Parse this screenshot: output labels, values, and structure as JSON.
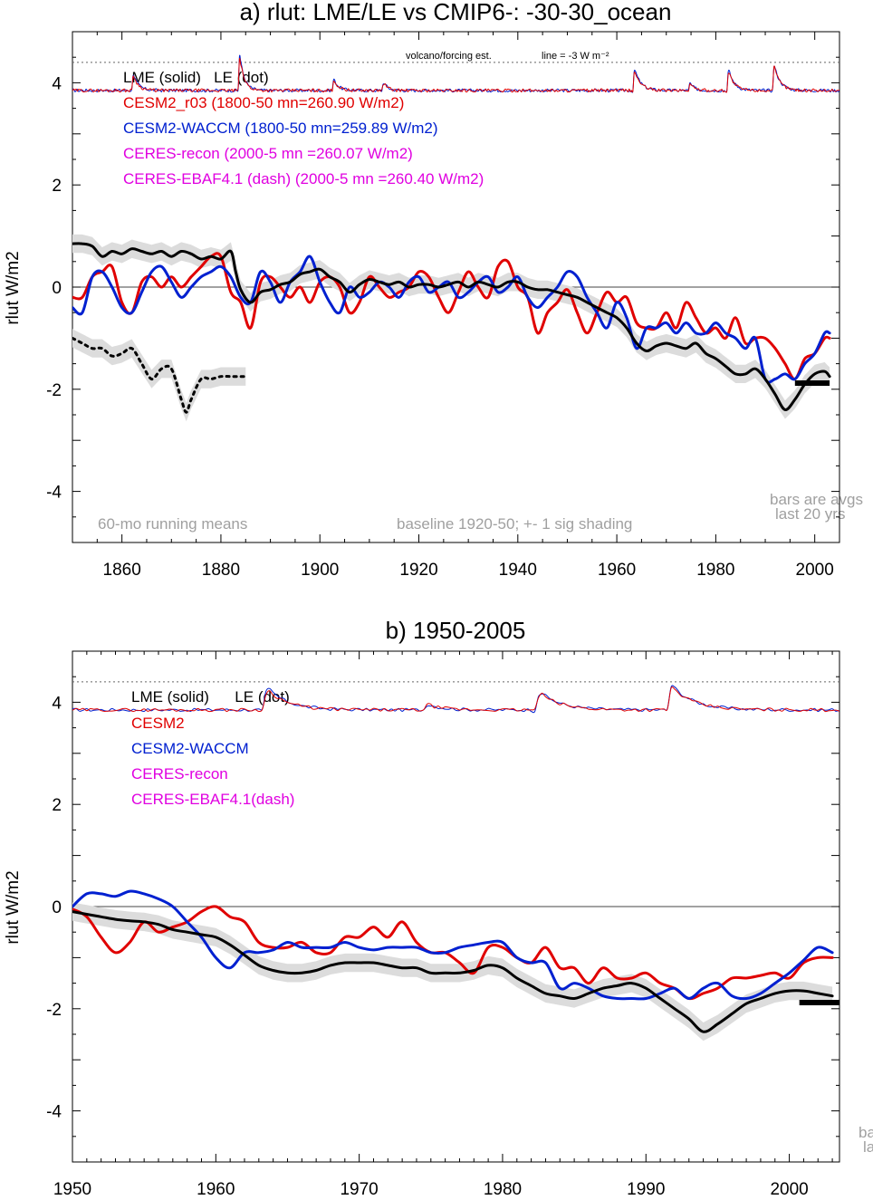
{
  "chart_data": [
    {
      "type": "line",
      "title": "a) rlut: LME/LE vs CMIP6-: -30-30_ocean",
      "ylabel": "rlut W/m2",
      "xlim": [
        1850,
        2005
      ],
      "ylim": [
        -5,
        5
      ],
      "xticks": [
        1860,
        1880,
        1900,
        1920,
        1940,
        1960,
        1980,
        2000
      ],
      "yticks": [
        4,
        2,
        0,
        -2,
        -4
      ],
      "volcano_note": "volcano/forcing est.",
      "line_note": "line = -3 W m⁻²",
      "legend": [
        {
          "label": "LME (solid)   LE (dot)",
          "color": "#000000"
        },
        {
          "label": "CESM2_r03 (1800-50 mn=260.90 W/m2)",
          "color": "#e00000"
        },
        {
          "label": "CESM2-WACCM (1800-50 mn=259.89 W/m2)",
          "color": "#0020d0"
        },
        {
          "label": "CERES-recon (2000-5 mn =260.07 W/m2)",
          "color": "#e000e0"
        },
        {
          "label": "CERES-EBAF4.1 (dash) (2000-5 mn =260.40 W/m2)",
          "color": "#e000e0"
        }
      ],
      "notes": {
        "bottom_left": "60-mo running means",
        "bottom_mid": "baseline 1920-50; +- 1 sig shading",
        "right_1": "bars are avgs",
        "right_2": "last 20 yrs"
      },
      "series": [
        {
          "name": "LME",
          "color": "#000000",
          "style": "solid",
          "x": [
            1850,
            1852,
            1854,
            1856,
            1858,
            1860,
            1862,
            1864,
            1866,
            1868,
            1870,
            1872,
            1874,
            1876,
            1878,
            1880,
            1882,
            1883,
            1884,
            1886,
            1888,
            1890,
            1892,
            1894,
            1896,
            1898,
            1900,
            1902,
            1904,
            1906,
            1908,
            1910,
            1912,
            1914,
            1916,
            1918,
            1920,
            1922,
            1924,
            1926,
            1928,
            1930,
            1932,
            1934,
            1936,
            1938,
            1940,
            1942,
            1944,
            1946,
            1948,
            1950,
            1952,
            1954,
            1956,
            1958,
            1960,
            1962,
            1964,
            1966,
            1968,
            1970,
            1972,
            1974,
            1976,
            1978,
            1980,
            1982,
            1984,
            1986,
            1988,
            1990,
            1992,
            1994,
            1996,
            1998,
            2000,
            2002,
            2003
          ],
          "y": [
            0.85,
            0.85,
            0.8,
            0.6,
            0.7,
            0.65,
            0.75,
            0.7,
            0.65,
            0.7,
            0.6,
            0.7,
            0.65,
            0.55,
            0.6,
            0.55,
            0.7,
            0.3,
            -0.05,
            -0.3,
            -0.1,
            -0.05,
            0.05,
            0.1,
            0.25,
            0.3,
            0.35,
            0.2,
            0.1,
            -0.1,
            0.05,
            0.15,
            0.1,
            0.05,
            0.1,
            0.0,
            0.05,
            0.05,
            0.0,
            0.05,
            0.1,
            0.0,
            0.1,
            0.05,
            0.0,
            0.1,
            0.1,
            0.0,
            -0.05,
            -0.05,
            -0.1,
            -0.15,
            -0.2,
            -0.3,
            -0.4,
            -0.5,
            -0.6,
            -0.8,
            -1.1,
            -1.25,
            -1.15,
            -1.1,
            -1.15,
            -1.2,
            -1.1,
            -1.3,
            -1.4,
            -1.55,
            -1.7,
            -1.7,
            -1.6,
            -1.8,
            -2.1,
            -2.4,
            -2.2,
            -1.9,
            -1.7,
            -1.65,
            -1.75
          ]
        },
        {
          "name": "LE",
          "color": "#000000",
          "style": "dot",
          "x": [
            1850,
            1852,
            1854,
            1856,
            1858,
            1860,
            1862,
            1864,
            1866,
            1868,
            1870,
            1872,
            1873,
            1874,
            1876,
            1878,
            1880,
            1882,
            1884,
            1885
          ],
          "y": [
            -1.0,
            -1.1,
            -1.2,
            -1.2,
            -1.35,
            -1.3,
            -1.2,
            -1.5,
            -1.8,
            -1.6,
            -1.6,
            -2.2,
            -2.45,
            -2.2,
            -1.8,
            -1.8,
            -1.75,
            -1.75,
            -1.75,
            -1.75
          ]
        },
        {
          "name": "CESM2_r03",
          "color": "#e00000",
          "style": "solid",
          "x": [
            1850,
            1852,
            1854,
            1856,
            1858,
            1860,
            1862,
            1864,
            1866,
            1868,
            1870,
            1872,
            1874,
            1876,
            1878,
            1880,
            1882,
            1884,
            1886,
            1888,
            1890,
            1892,
            1894,
            1896,
            1898,
            1900,
            1902,
            1904,
            1906,
            1908,
            1910,
            1912,
            1914,
            1916,
            1918,
            1920,
            1922,
            1924,
            1926,
            1928,
            1930,
            1932,
            1934,
            1936,
            1938,
            1940,
            1942,
            1944,
            1946,
            1948,
            1950,
            1952,
            1954,
            1956,
            1958,
            1960,
            1962,
            1964,
            1966,
            1968,
            1970,
            1972,
            1974,
            1976,
            1978,
            1980,
            1982,
            1984,
            1986,
            1988,
            1990,
            1992,
            1994,
            1996,
            1998,
            2000,
            2002,
            2003
          ],
          "y": [
            -0.2,
            -0.2,
            0.2,
            0.3,
            0.4,
            -0.3,
            -0.5,
            0.1,
            0.2,
            0.0,
            0.2,
            0.0,
            0.2,
            0.4,
            0.6,
            0.6,
            -0.1,
            -0.3,
            -0.8,
            0.1,
            0.2,
            0.0,
            -0.2,
            0.0,
            -0.3,
            0.1,
            0.2,
            0.0,
            -0.5,
            -0.3,
            0.2,
            0.0,
            -0.2,
            -0.1,
            0.0,
            0.3,
            0.2,
            -0.2,
            -0.5,
            -0.1,
            0.3,
            0.0,
            -0.2,
            0.4,
            0.5,
            0.0,
            -0.2,
            -0.9,
            -0.5,
            -0.3,
            -0.05,
            -0.5,
            -0.9,
            -0.5,
            -0.1,
            -0.3,
            -0.2,
            -0.7,
            -0.8,
            -0.8,
            -0.5,
            -0.8,
            -0.3,
            -0.6,
            -0.9,
            -0.8,
            -1.0,
            -0.6,
            -1.1,
            -1.0,
            -1.0,
            -1.2,
            -1.5,
            -1.8,
            -1.4,
            -1.3,
            -1.0,
            -1.0
          ]
        },
        {
          "name": "CESM2-WACCM",
          "color": "#0020d0",
          "style": "solid",
          "x": [
            1850,
            1852,
            1854,
            1856,
            1858,
            1860,
            1862,
            1864,
            1866,
            1868,
            1870,
            1872,
            1874,
            1876,
            1878,
            1880,
            1882,
            1884,
            1886,
            1888,
            1890,
            1892,
            1894,
            1896,
            1898,
            1900,
            1902,
            1904,
            1906,
            1908,
            1910,
            1912,
            1914,
            1916,
            1918,
            1920,
            1922,
            1924,
            1926,
            1928,
            1930,
            1932,
            1934,
            1936,
            1938,
            1940,
            1942,
            1944,
            1946,
            1948,
            1950,
            1952,
            1954,
            1956,
            1958,
            1960,
            1962,
            1964,
            1966,
            1968,
            1970,
            1972,
            1974,
            1976,
            1978,
            1980,
            1982,
            1984,
            1986,
            1988,
            1990,
            1992,
            1994,
            1996,
            1998,
            2000,
            2002,
            2003
          ],
          "y": [
            -0.4,
            -0.5,
            0.2,
            0.3,
            0.0,
            -0.4,
            -0.5,
            -0.1,
            0.3,
            0.4,
            0.1,
            -0.2,
            0.0,
            0.2,
            0.3,
            0.4,
            0.2,
            -0.2,
            -0.3,
            0.3,
            0.1,
            -0.3,
            0.1,
            0.3,
            0.6,
            0.1,
            -0.3,
            -0.5,
            0.0,
            -0.2,
            -0.1,
            0.1,
            0.0,
            -0.2,
            0.1,
            0.2,
            -0.1,
            0.0,
            0.1,
            -0.2,
            -0.1,
            0.1,
            0.2,
            -0.1,
            0.0,
            0.2,
            -0.2,
            -0.4,
            -0.2,
            0.0,
            0.3,
            0.2,
            -0.2,
            -0.5,
            -0.8,
            -0.3,
            -0.6,
            -1.2,
            -0.8,
            -0.8,
            -0.7,
            -0.9,
            -0.7,
            -0.9,
            -0.9,
            -0.7,
            -0.9,
            -1.0,
            -1.2,
            -1.0,
            -1.8,
            -1.8,
            -1.7,
            -1.8,
            -1.5,
            -1.3,
            -0.9,
            -0.9
          ]
        },
        {
          "name": "CERES-EBAF4.1",
          "color": "#000000",
          "style": "bar",
          "x": [
            1996,
            2003
          ],
          "y": [
            -1.88,
            -1.88
          ]
        }
      ]
    },
    {
      "type": "line",
      "title": "b) 1950-2005",
      "ylabel": "rlut W/m2",
      "xlim": [
        1950,
        2003.5
      ],
      "ylim": [
        -5,
        5
      ],
      "xticks": [
        1950,
        1960,
        1970,
        1980,
        1990,
        2000
      ],
      "yticks": [
        4,
        2,
        0,
        -2,
        -4
      ],
      "legend": [
        {
          "label": "LME (solid)      LE (dot)",
          "color": "#000000"
        },
        {
          "label": "CESM2",
          "color": "#e00000"
        },
        {
          "label": "CESM2-WACCM",
          "color": "#0020d0"
        },
        {
          "label": "CERES-recon",
          "color": "#e000e0"
        },
        {
          "label": "CERES-EBAF4.1(dash)",
          "color": "#e000e0"
        }
      ],
      "notes": {
        "right_1": "ba",
        "right_2": "la"
      },
      "series": [
        {
          "name": "LME",
          "color": "#000000",
          "style": "solid",
          "x": [
            1950,
            1951,
            1952,
            1953,
            1954,
            1955,
            1956,
            1957,
            1958,
            1959,
            1960,
            1961,
            1962,
            1963,
            1964,
            1965,
            1966,
            1967,
            1968,
            1969,
            1970,
            1971,
            1972,
            1973,
            1974,
            1975,
            1976,
            1977,
            1978,
            1979,
            1980,
            1981,
            1982,
            1983,
            1984,
            1985,
            1986,
            1987,
            1988,
            1989,
            1990,
            1991,
            1992,
            1993,
            1994,
            1995,
            1996,
            1997,
            1998,
            1999,
            2000,
            2001,
            2002,
            2003
          ],
          "y": [
            -0.1,
            -0.15,
            -0.2,
            -0.25,
            -0.28,
            -0.3,
            -0.35,
            -0.45,
            -0.5,
            -0.55,
            -0.6,
            -0.75,
            -0.95,
            -1.15,
            -1.25,
            -1.3,
            -1.3,
            -1.25,
            -1.15,
            -1.1,
            -1.1,
            -1.1,
            -1.15,
            -1.2,
            -1.2,
            -1.3,
            -1.3,
            -1.3,
            -1.25,
            -1.15,
            -1.2,
            -1.4,
            -1.55,
            -1.7,
            -1.75,
            -1.8,
            -1.7,
            -1.6,
            -1.55,
            -1.5,
            -1.6,
            -1.8,
            -2.0,
            -2.2,
            -2.45,
            -2.3,
            -2.1,
            -1.9,
            -1.8,
            -1.7,
            -1.65,
            -1.65,
            -1.7,
            -1.75
          ]
        },
        {
          "name": "CESM2",
          "color": "#e00000",
          "style": "solid",
          "x": [
            1950,
            1951,
            1952,
            1953,
            1954,
            1955,
            1956,
            1957,
            1958,
            1959,
            1960,
            1961,
            1962,
            1963,
            1964,
            1965,
            1966,
            1967,
            1968,
            1969,
            1970,
            1971,
            1972,
            1973,
            1974,
            1975,
            1976,
            1977,
            1978,
            1979,
            1980,
            1981,
            1982,
            1983,
            1984,
            1985,
            1986,
            1987,
            1988,
            1989,
            1990,
            1991,
            1992,
            1993,
            1994,
            1995,
            1996,
            1997,
            1998,
            1999,
            2000,
            2001,
            2002,
            2003
          ],
          "y": [
            -0.05,
            -0.2,
            -0.6,
            -0.9,
            -0.7,
            -0.3,
            -0.5,
            -0.4,
            -0.3,
            -0.1,
            0.0,
            -0.2,
            -0.3,
            -0.7,
            -0.8,
            -0.8,
            -0.7,
            -0.9,
            -0.9,
            -0.6,
            -0.6,
            -0.4,
            -0.6,
            -0.3,
            -0.7,
            -0.9,
            -0.9,
            -1.1,
            -1.3,
            -0.8,
            -0.8,
            -1.0,
            -1.1,
            -0.8,
            -1.2,
            -1.2,
            -1.5,
            -1.2,
            -1.4,
            -1.4,
            -1.3,
            -1.5,
            -1.6,
            -1.8,
            -1.7,
            -1.6,
            -1.4,
            -1.4,
            -1.35,
            -1.3,
            -1.4,
            -1.1,
            -1.0,
            -1.0
          ]
        },
        {
          "name": "CESM2-WACCM",
          "color": "#0020d0",
          "style": "solid",
          "x": [
            1950,
            1951,
            1952,
            1953,
            1954,
            1955,
            1956,
            1957,
            1958,
            1959,
            1960,
            1961,
            1962,
            1963,
            1964,
            1965,
            1966,
            1967,
            1968,
            1969,
            1970,
            1971,
            1972,
            1973,
            1974,
            1975,
            1976,
            1977,
            1978,
            1979,
            1980,
            1981,
            1982,
            1983,
            1984,
            1985,
            1986,
            1987,
            1988,
            1989,
            1990,
            1991,
            1992,
            1993,
            1994,
            1995,
            1996,
            1997,
            1998,
            1999,
            2000,
            2001,
            2002,
            2003
          ],
          "y": [
            0.0,
            0.25,
            0.25,
            0.2,
            0.3,
            0.25,
            0.15,
            0.0,
            -0.3,
            -0.6,
            -1.0,
            -1.2,
            -0.9,
            -0.9,
            -0.85,
            -0.7,
            -0.8,
            -0.8,
            -0.8,
            -0.7,
            -0.8,
            -0.85,
            -0.8,
            -0.8,
            -0.8,
            -0.9,
            -0.9,
            -0.8,
            -0.75,
            -0.7,
            -0.7,
            -1.0,
            -1.1,
            -1.1,
            -1.6,
            -1.5,
            -1.6,
            -1.75,
            -1.8,
            -1.8,
            -1.8,
            -1.7,
            -1.6,
            -1.8,
            -1.6,
            -1.5,
            -1.75,
            -1.8,
            -1.7,
            -1.5,
            -1.3,
            -1.05,
            -0.8,
            -0.9
          ]
        },
        {
          "name": "CERES-EBAF4.1",
          "color": "#000000",
          "style": "bar",
          "x": [
            2000.7,
            2003.5
          ],
          "y": [
            -1.88,
            -1.88
          ]
        }
      ]
    }
  ]
}
